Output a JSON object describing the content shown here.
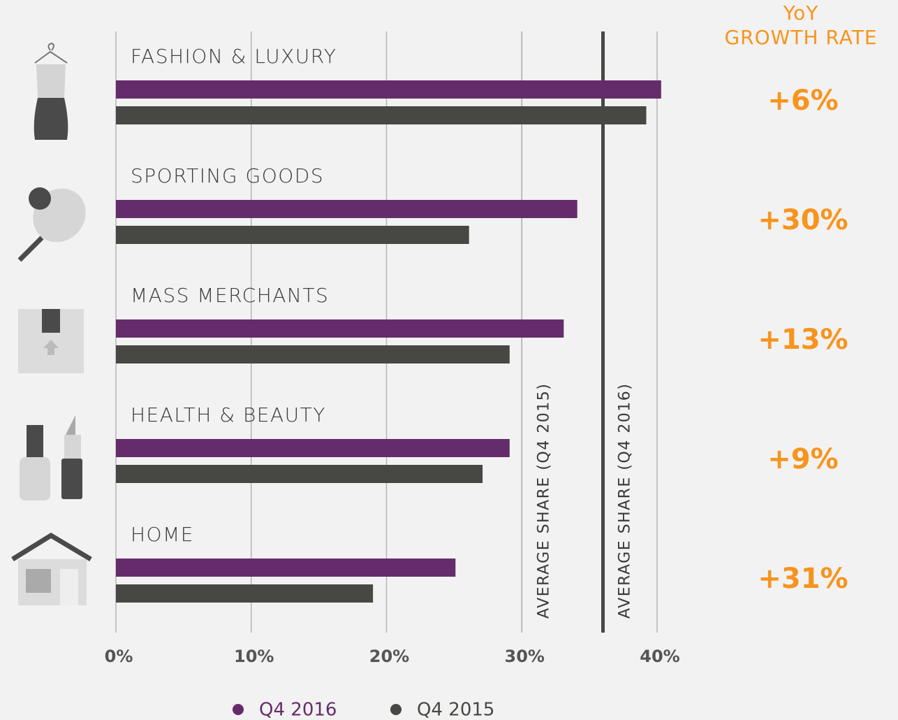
{
  "chart_data": {
    "type": "bar",
    "orientation": "horizontal",
    "categories": [
      "FASHION & LUXURY",
      "SPORTING GOODS",
      "MASS MERCHANTS",
      "HEALTH & BEAUTY",
      "HOME"
    ],
    "series": [
      {
        "name": "Q4 2016",
        "color": "#652c6c",
        "values": [
          40.3,
          34.1,
          33.1,
          29.1,
          25.1
        ]
      },
      {
        "name": "Q4 2015",
        "color": "#474743",
        "values": [
          39.2,
          26.1,
          29.1,
          27.1,
          19.0
        ]
      }
    ],
    "xlim": [
      0,
      40
    ],
    "xticks": [
      {
        "value": 0,
        "label": "0%"
      },
      {
        "value": 10,
        "label": "10%"
      },
      {
        "value": 20,
        "label": "20%"
      },
      {
        "value": 30,
        "label": "30%"
      },
      {
        "value": 40,
        "label": "40%"
      }
    ],
    "grid": true,
    "reference_lines": [
      {
        "label": "AVERAGE SHARE (Q4 2015)",
        "value": 30,
        "color": "#aaaaaa"
      },
      {
        "label": "AVERAGE SHARE (Q4 2016)",
        "value": 36,
        "color": "#474743"
      }
    ],
    "growth_header": [
      "YoY",
      "GROWTH RATE"
    ],
    "growth_rates": [
      "+6%",
      "+30%",
      "+13%",
      "+9%",
      "+31%"
    ],
    "growth_color": "#f7941d",
    "legend": "bottom"
  }
}
